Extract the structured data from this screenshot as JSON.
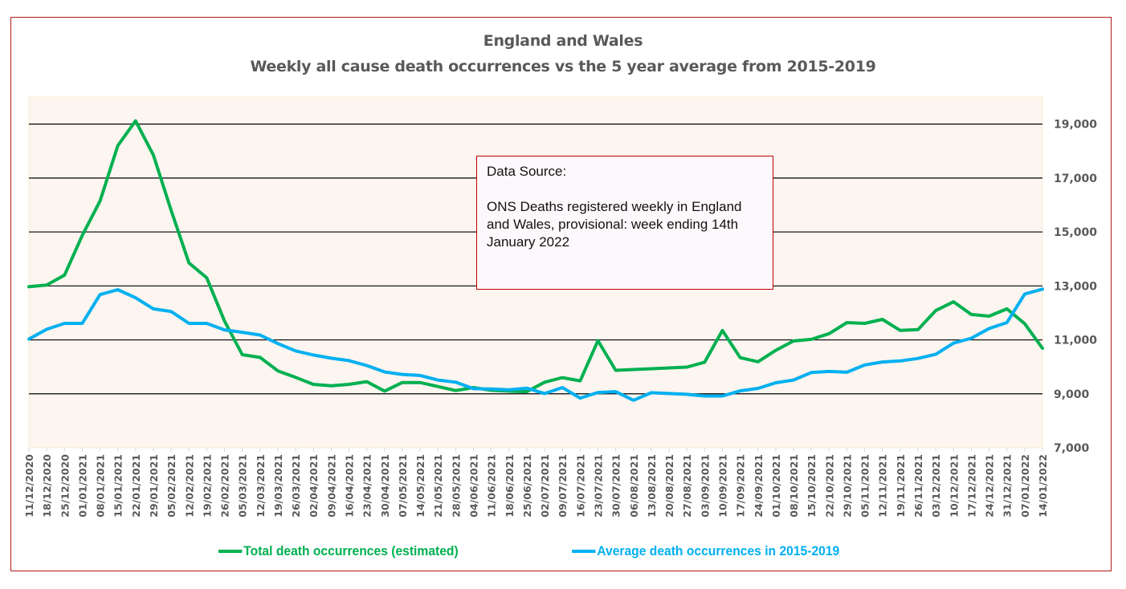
{
  "chart_data": {
    "type": "line",
    "title": "England and Wales",
    "subtitle": "Weekly all cause death occurrences vs the 5 year average from 2015-2019",
    "xlabel": "",
    "ylabel": "",
    "ylim": [
      7000,
      20000
    ],
    "yticks": [
      7000,
      9000,
      11000,
      13000,
      15000,
      17000,
      19000
    ],
    "ytick_labels": [
      "7,000",
      "9,000",
      "11,000",
      "13,000",
      "15,000",
      "17,000",
      "19,000"
    ],
    "y_axis_side": "right",
    "grid": true,
    "legend_position": "bottom",
    "x": [
      "11/12/2020",
      "18/12/2020",
      "25/12/2020",
      "01/01/2021",
      "08/01/2021",
      "15/01/2021",
      "22/01/2021",
      "29/01/2021",
      "05/02/2021",
      "12/02/2021",
      "19/02/2021",
      "26/02/2021",
      "05/03/2021",
      "12/03/2021",
      "19/03/2021",
      "26/03/2021",
      "02/04/2021",
      "09/04/2021",
      "16/04/2021",
      "23/04/2021",
      "30/04/2021",
      "07/05/2021",
      "14/05/2021",
      "21/05/2021",
      "28/05/2021",
      "04/06/2021",
      "11/06/2021",
      "18/06/2021",
      "25/06/2021",
      "02/07/2021",
      "09/07/2021",
      "16/07/2021",
      "23/07/2021",
      "30/07/2021",
      "06/08/2021",
      "13/08/2021",
      "20/08/2021",
      "27/08/2021",
      "03/09/2021",
      "10/09/2021",
      "17/09/2021",
      "24/09/2021",
      "01/10/2021",
      "08/10/2021",
      "15/10/2021",
      "22/10/2021",
      "29/10/2021",
      "05/11/2021",
      "12/11/2021",
      "19/11/2021",
      "26/11/2021",
      "03/12/2021",
      "10/12/2021",
      "17/12/2021",
      "24/12/2021",
      "31/12/2021",
      "07/01/2022",
      "14/01/2022"
    ],
    "series": [
      {
        "name": "Total death occurrences (estimated)",
        "color": "#00b050",
        "values": [
          12970,
          13030,
          13400,
          14870,
          16150,
          18200,
          19120,
          17850,
          15800,
          13850,
          13300,
          11700,
          10450,
          10350,
          9850,
          9610,
          9350,
          9300,
          9350,
          9450,
          9100,
          9420,
          9420,
          9270,
          9120,
          9230,
          9130,
          9100,
          9080,
          9430,
          9600,
          9480,
          10970,
          9870,
          9900,
          9930,
          9960,
          9990,
          10170,
          11350,
          10340,
          10190,
          10610,
          10960,
          11020,
          11230,
          11640,
          11610,
          11760,
          11350,
          11380,
          12090,
          12410,
          11940,
          11880,
          12150,
          11600,
          10690
        ]
      },
      {
        "name": "Average death occurrences in 2015-2019",
        "color": "#00b0f0",
        "values": [
          11030,
          11390,
          11610,
          11610,
          12680,
          12860,
          12560,
          12150,
          12050,
          11610,
          11610,
          11370,
          11280,
          11180,
          10860,
          10590,
          10440,
          10320,
          10230,
          10050,
          9810,
          9720,
          9680,
          9510,
          9430,
          9190,
          9180,
          9150,
          9210,
          9010,
          9230,
          8840,
          9050,
          9080,
          8760,
          9040,
          9010,
          8980,
          8920,
          8920,
          9110,
          9200,
          9410,
          9510,
          9790,
          9830,
          9800,
          10070,
          10180,
          10220,
          10310,
          10470,
          10880,
          11060,
          11420,
          11640,
          12700,
          12880
        ]
      }
    ]
  },
  "annotation": {
    "heading": "Data Source:",
    "body": "ONS Deaths registered weekly in England and Wales, provisional: week ending 14th January 2022"
  },
  "colors": {
    "plot_background": "#fdf5f0",
    "frame_border": "#b01a1a",
    "gridline": "#000000",
    "text": "#595959"
  }
}
